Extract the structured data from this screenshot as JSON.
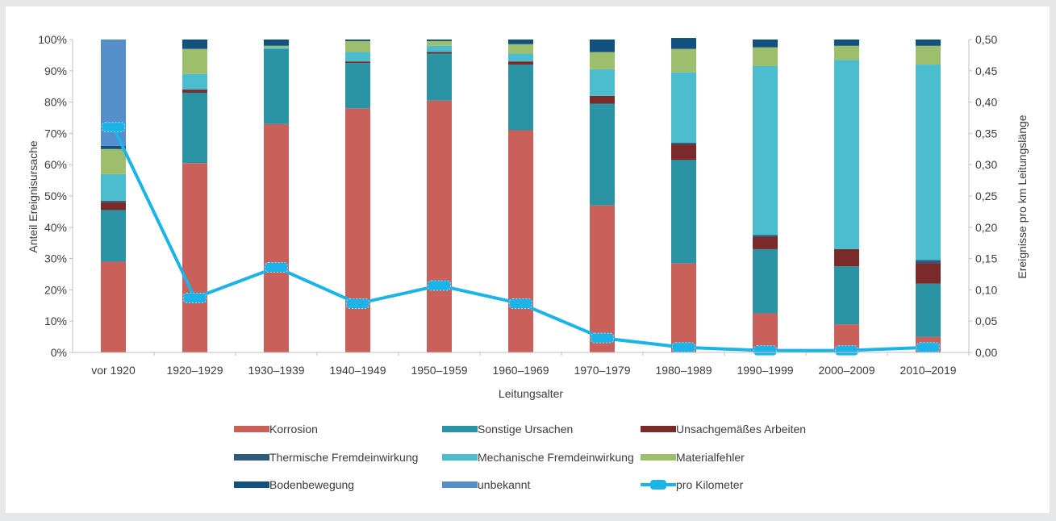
{
  "chart_data": {
    "type": "bar",
    "stacked": true,
    "percent_stacked": true,
    "xlabel": "Leitungsalter",
    "ylabel": "Anteil Ereignisursache",
    "y2label": "Ereignisse pro km Leitungslänge",
    "ylim": [
      0,
      100
    ],
    "y2lim": [
      0,
      0.5
    ],
    "yticks": [
      "0%",
      "10%",
      "20%",
      "30%",
      "40%",
      "50%",
      "60%",
      "70%",
      "80%",
      "90%",
      "100%"
    ],
    "y2ticks": [
      "0,00",
      "0,05",
      "0,10",
      "0,15",
      "0,20",
      "0,25",
      "0,30",
      "0,35",
      "0,40",
      "0,45",
      "0,50"
    ],
    "categories": [
      "vor 1920",
      "1920–1929",
      "1930–1939",
      "1940–1949",
      "1950–1959",
      "1960–1969",
      "1970–1979",
      "1980–1989",
      "1990–1999",
      "2000–2009",
      "2010–2019"
    ],
    "legend_position": "bottom",
    "series": [
      {
        "name": "Korrosion",
        "color": "#c9605a",
        "values": [
          29.0,
          60.5,
          73.0,
          78.0,
          80.5,
          71.0,
          47.0,
          28.5,
          12.5,
          9.0,
          5.0
        ]
      },
      {
        "name": "Sonstige Ursachen",
        "color": "#2a93a4",
        "values": [
          16.5,
          22.5,
          24.0,
          14.5,
          15.0,
          21.0,
          32.5,
          33.0,
          20.5,
          18.5,
          17.0
        ]
      },
      {
        "name": "Unsachgemäßes Arbeiten",
        "color": "#7b2a2a",
        "values": [
          2.5,
          1.0,
          0.0,
          0.5,
          0.5,
          1.0,
          2.5,
          5.0,
          4.0,
          5.5,
          6.5
        ]
      },
      {
        "name": "Thermische Fremdeinwirkung",
        "color": "#2f5a7e",
        "values": [
          0.5,
          0.0,
          0.0,
          0.0,
          0.0,
          0.0,
          0.0,
          0.5,
          0.5,
          0.0,
          1.0
        ]
      },
      {
        "name": "Mechanische Fremdeinwirkung",
        "color": "#4cbccf",
        "values": [
          8.5,
          5.0,
          0.5,
          3.0,
          2.0,
          2.5,
          8.5,
          22.5,
          54.0,
          60.5,
          62.5
        ]
      },
      {
        "name": "Materialfehler",
        "color": "#9dbf6d",
        "values": [
          8.0,
          8.0,
          0.5,
          3.5,
          1.5,
          3.0,
          5.5,
          7.5,
          6.0,
          4.5,
          6.0
        ]
      },
      {
        "name": "Bodenbewegung",
        "color": "#12507e",
        "values": [
          1.0,
          3.0,
          2.0,
          0.5,
          0.5,
          1.5,
          4.0,
          3.5,
          2.5,
          2.0,
          2.0
        ]
      },
      {
        "name": "unbekannt",
        "color": "#558ecb",
        "values": [
          34.0,
          0.0,
          0.0,
          0.0,
          0.0,
          0.0,
          0.0,
          0.0,
          0.0,
          0.0,
          0.0
        ]
      }
    ],
    "line": {
      "name": "pro Kilometer",
      "color": "#1cb4e8",
      "axis": "secondary",
      "values": [
        0.36,
        0.087,
        0.136,
        0.078,
        0.107,
        0.078,
        0.023,
        0.008,
        0.003,
        0.003,
        0.008
      ]
    }
  }
}
